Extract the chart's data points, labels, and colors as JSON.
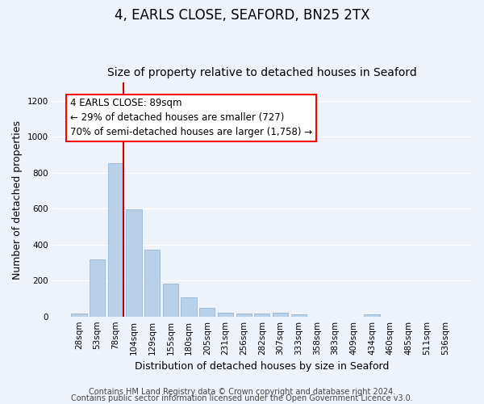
{
  "title": "4, EARLS CLOSE, SEAFORD, BN25 2TX",
  "subtitle": "Size of property relative to detached houses in Seaford",
  "xlabel": "Distribution of detached houses by size in Seaford",
  "ylabel": "Number of detached properties",
  "categories": [
    "28sqm",
    "53sqm",
    "78sqm",
    "104sqm",
    "129sqm",
    "155sqm",
    "180sqm",
    "205sqm",
    "231sqm",
    "256sqm",
    "282sqm",
    "307sqm",
    "333sqm",
    "358sqm",
    "383sqm",
    "409sqm",
    "434sqm",
    "460sqm",
    "485sqm",
    "511sqm",
    "536sqm"
  ],
  "values": [
    18,
    317,
    850,
    597,
    370,
    183,
    105,
    48,
    22,
    18,
    18,
    20,
    10,
    0,
    0,
    0,
    12,
    0,
    0,
    0,
    0
  ],
  "bar_color": "#b8d0e8",
  "bar_edgecolor": "#8ab0d0",
  "highlight_bar_index": 2,
  "highlight_color": "#cc0000",
  "annotation_text": "4 EARLS CLOSE: 89sqm\n← 29% of detached houses are smaller (727)\n70% of semi-detached houses are larger (1,758) →",
  "ylim": [
    0,
    1300
  ],
  "yticks": [
    0,
    200,
    400,
    600,
    800,
    1000,
    1200
  ],
  "background_color": "#eef2fb",
  "grid_color": "#ffffff",
  "footer_line1": "Contains HM Land Registry data © Crown copyright and database right 2024.",
  "footer_line2": "Contains public sector information licensed under the Open Government Licence v3.0.",
  "title_fontsize": 12,
  "subtitle_fontsize": 10,
  "xlabel_fontsize": 9,
  "ylabel_fontsize": 9,
  "tick_fontsize": 7.5,
  "footer_fontsize": 7,
  "annotation_fontsize": 8.5
}
